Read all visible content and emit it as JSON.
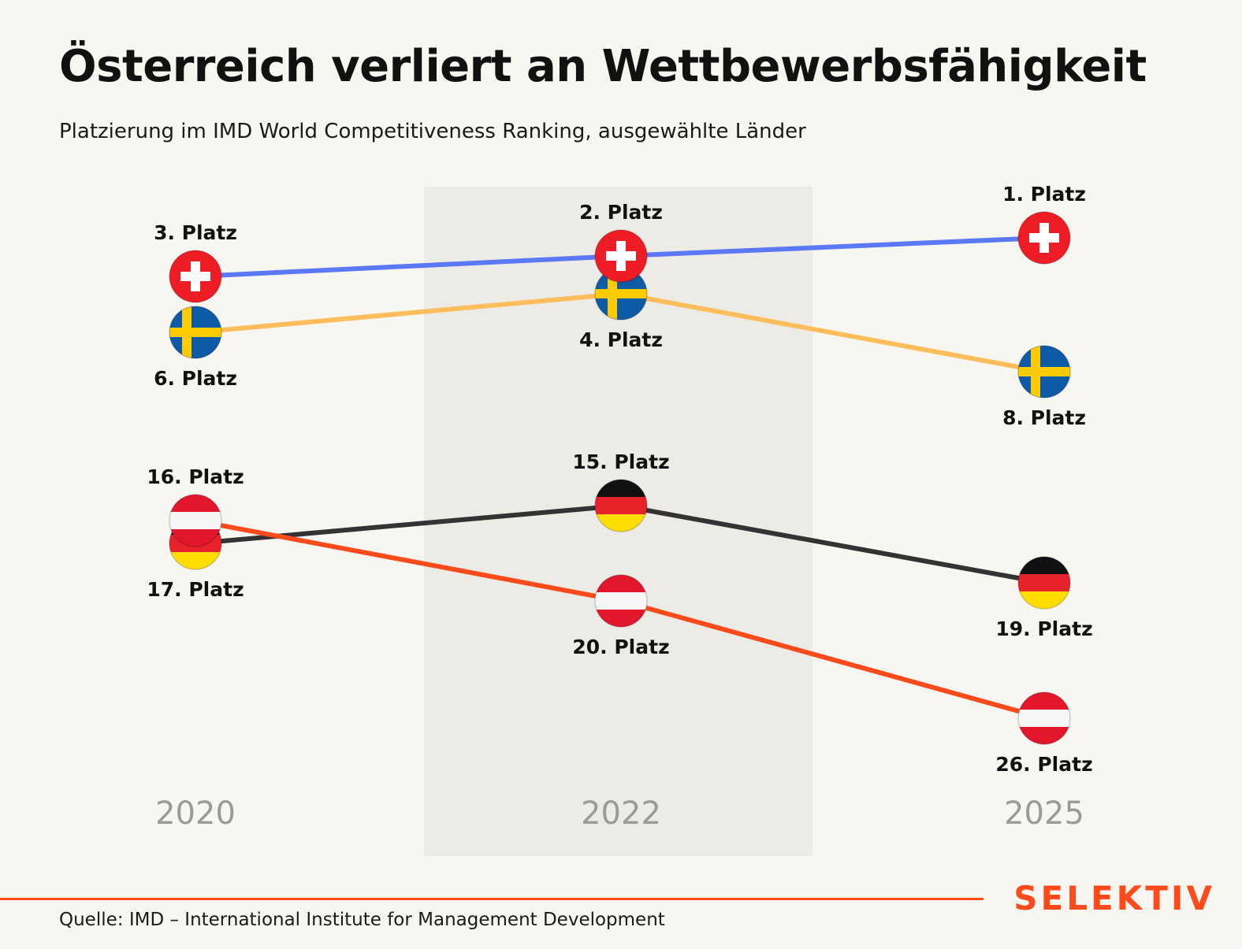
{
  "header": {
    "title": "Österreich verliert an Wettbewerbsfähigkeit",
    "subtitle": "Platzierung im IMD World Competitiveness Ranking, ausgewählte Länder"
  },
  "footer": {
    "source": "Quelle: IMD – International Institute for Management Development",
    "brand": "SELEKTIV"
  },
  "chart_data": {
    "type": "line",
    "title": "Österreich verliert an Wettbewerbsfähigkeit",
    "subtitle": "Platzierung im IMD World Competitiveness Ranking, ausgewählte Länder",
    "x": [
      "2020",
      "2022",
      "2025"
    ],
    "highlighted_x": "2022",
    "grid": false,
    "legend": "none",
    "y_axis": "rank (inverted)",
    "series": [
      {
        "flag": "switzerland-flag",
        "color": "#5b78f6",
        "values": [
          3,
          2,
          1
        ],
        "labels": [
          "3. Platz",
          "2. Platz",
          "1. Platz"
        ],
        "label_side": [
          "above",
          "above",
          "above"
        ]
      },
      {
        "flag": "sweden-flag",
        "color": "#ffbd5c",
        "values": [
          6,
          4,
          8
        ],
        "labels": [
          "6. Platz",
          "4. Platz",
          "8. Platz"
        ],
        "label_side": [
          "below",
          "below",
          "below"
        ]
      },
      {
        "flag": "germany-flag",
        "color": "#333333",
        "values": [
          17,
          15,
          19
        ],
        "labels": [
          "17. Platz",
          "15. Platz",
          "19. Platz"
        ],
        "label_side": [
          "below",
          "above",
          "below"
        ]
      },
      {
        "flag": "austria-flag",
        "color": "#ff4a1c",
        "values": [
          16,
          20,
          26
        ],
        "labels": [
          "16. Platz",
          "20. Platz",
          "26. Platz"
        ],
        "label_side": [
          "above",
          "below",
          "below"
        ]
      }
    ]
  }
}
